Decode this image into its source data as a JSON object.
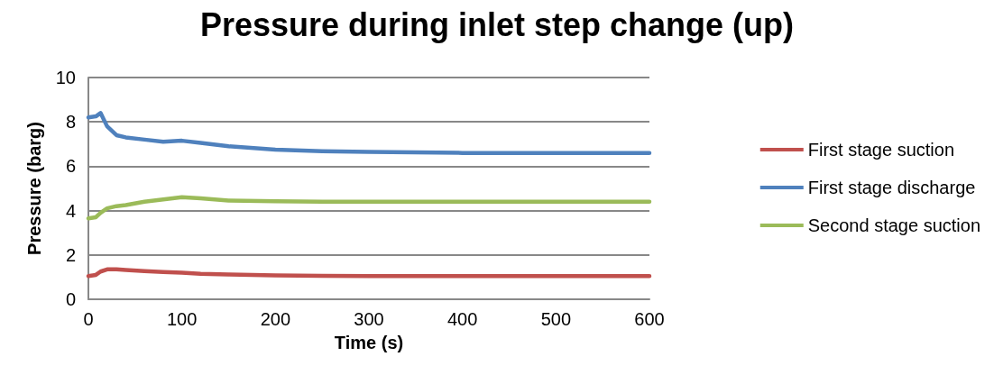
{
  "chart_data": {
    "type": "line",
    "title": "Pressure during inlet step change (up)",
    "xlabel": "Time (s)",
    "ylabel": "Pressure (barg)",
    "xlim": [
      0,
      600
    ],
    "xticks": [
      0,
      100,
      200,
      300,
      400,
      500,
      600
    ],
    "ylim": [
      0,
      10
    ],
    "yticks": [
      0,
      2,
      4,
      6,
      8,
      10
    ],
    "grid": "y",
    "legend": "right",
    "marker": "none",
    "line_style": "solid",
    "x": [
      0,
      8,
      13,
      20,
      30,
      40,
      60,
      80,
      100,
      120,
      150,
      200,
      250,
      300,
      400,
      500,
      600
    ],
    "series": [
      {
        "name": "First stage suction",
        "color": "#c0504d",
        "values": [
          1.05,
          1.1,
          1.25,
          1.35,
          1.35,
          1.32,
          1.27,
          1.23,
          1.2,
          1.15,
          1.12,
          1.08,
          1.06,
          1.05,
          1.05,
          1.05,
          1.05
        ]
      },
      {
        "name": "First stage discharge",
        "color": "#4f81bd",
        "values": [
          8.2,
          8.25,
          8.4,
          7.8,
          7.4,
          7.3,
          7.2,
          7.1,
          7.15,
          7.05,
          6.9,
          6.75,
          6.68,
          6.65,
          6.6,
          6.6,
          6.6
        ]
      },
      {
        "name": "Second stage suction",
        "color": "#9bbb59",
        "values": [
          3.65,
          3.7,
          3.9,
          4.1,
          4.2,
          4.25,
          4.4,
          4.5,
          4.6,
          4.55,
          4.45,
          4.42,
          4.4,
          4.4,
          4.4,
          4.4,
          4.4
        ]
      }
    ]
  }
}
